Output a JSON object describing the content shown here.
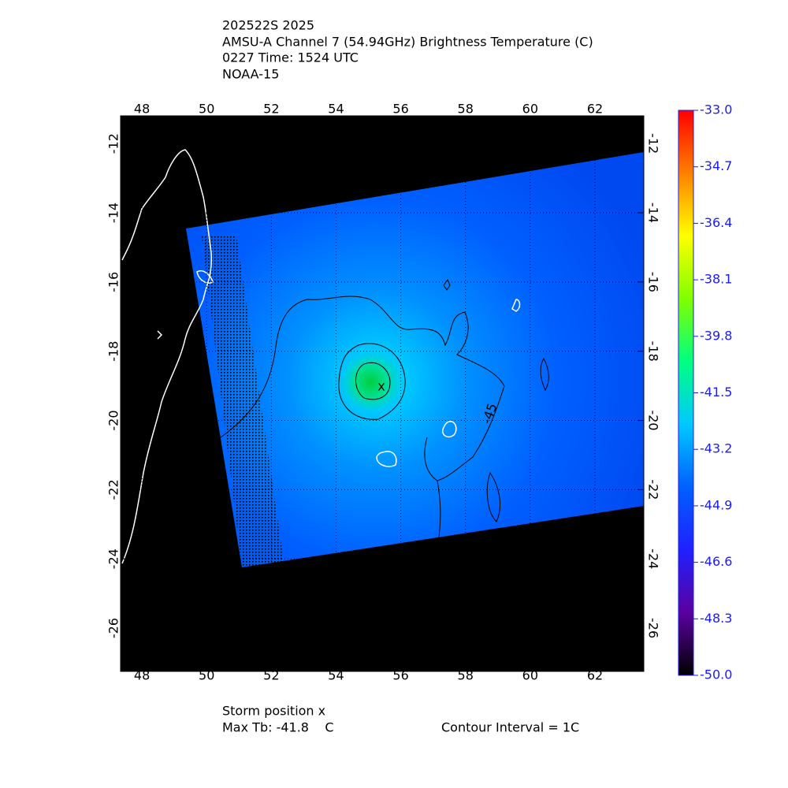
{
  "title_lines": [
    "202522S 2025",
    "AMSU-A Channel 7 (54.94GHz) Brightness Temperature (C)",
    "0227 Time: 1524 UTC",
    "NOAA-15"
  ],
  "chart_data": {
    "type": "map",
    "xlim": [
      47.34,
      63.51
    ],
    "ylim": [
      -27.25,
      -11.2
    ],
    "xticks": [
      48,
      50,
      52,
      54,
      56,
      58,
      60,
      62
    ],
    "yticks": [
      -12,
      -14,
      -16,
      -18,
      -20,
      -22,
      -24,
      -26
    ],
    "grid": true,
    "contour_label": "-45",
    "colorbar": {
      "lim": [
        -50,
        -33
      ],
      "colors": [
        "#000000",
        "#5a00a0",
        "#2020ff",
        "#0060ff",
        "#00c8ff",
        "#00ff80",
        "#80ff00",
        "#ffff00",
        "#ff8000",
        "#ff0000"
      ],
      "ticks": [
        {
          "value": -33,
          "label": "-33.0"
        },
        {
          "value": -34.7,
          "label": "-34.7"
        },
        {
          "value": -36.4,
          "label": "-36.4"
        },
        {
          "value": -38.1,
          "label": "-38.1"
        },
        {
          "value": -39.8,
          "label": "-39.8"
        },
        {
          "value": -41.5,
          "label": "-41.5"
        },
        {
          "value": -43.2,
          "label": "-43.2"
        },
        {
          "value": -44.9,
          "label": "-44.9"
        },
        {
          "value": -46.6,
          "label": "-46.6"
        },
        {
          "value": -48.3,
          "label": "-48.3"
        },
        {
          "value": -50,
          "label": "-50.0"
        }
      ]
    }
  },
  "footer": {
    "storm_position": "Storm position x",
    "max_tb": "Max Tb: -41.8    C",
    "contour_interval": "Contour Interval = 1C"
  }
}
